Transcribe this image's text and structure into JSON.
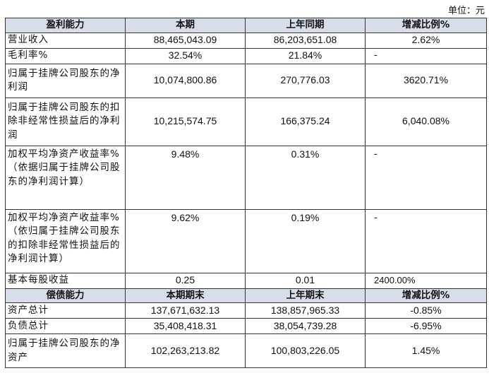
{
  "unit": "单位：元",
  "profit_header": [
    "盈利能力",
    "本期",
    "上年同期",
    "增减比例%"
  ],
  "profit_rows": [
    {
      "label": "营业收入",
      "current": "88,465,043.09",
      "prior": "86,203,651.08",
      "change": "2.62%"
    },
    {
      "label": "毛利率%",
      "current": "32.54%",
      "prior": "21.84%",
      "change": "-"
    },
    {
      "label": "归属于挂牌公司股东的净利润",
      "current": "10,074,800.86",
      "prior": "270,776.03",
      "change": "3620.71%"
    },
    {
      "label": "归属于挂牌公司股东的扣除非经常性损益后的净利润",
      "current": "10,215,574.75",
      "prior": "166,375.24",
      "change": "6,040.08%"
    },
    {
      "label": "加权平均净资产收益率%（依据归属于挂牌公司股东的净利润计算）",
      "current": "9.48%",
      "prior": "0.31%",
      "change": "-"
    },
    {
      "label": "加权平均净资产收益率%（依归属于挂牌公司股东的扣除非经常性损益后的净利润计算）",
      "current": "9.62%",
      "prior": "0.19%",
      "change": "-"
    },
    {
      "label": "基本每股收益",
      "current": "0.25",
      "prior": "0.01",
      "change": "2400.00%"
    }
  ],
  "solvency_header": [
    "偿债能力",
    "本期期末",
    "上年期末",
    "增减比例%"
  ],
  "solvency_rows": [
    {
      "label": "资产总计",
      "current": "137,671,632.13",
      "prior": "138,857,965.33",
      "change": "-0.85%"
    },
    {
      "label": "负债总计",
      "current": "35,408,418.31",
      "prior": "38,054,739.28",
      "change": "-6.95%"
    },
    {
      "label": "归属于挂牌公司股东的净资产",
      "current": "102,263,213.82",
      "prior": "100,803,226.05",
      "change": "1.45%"
    }
  ]
}
